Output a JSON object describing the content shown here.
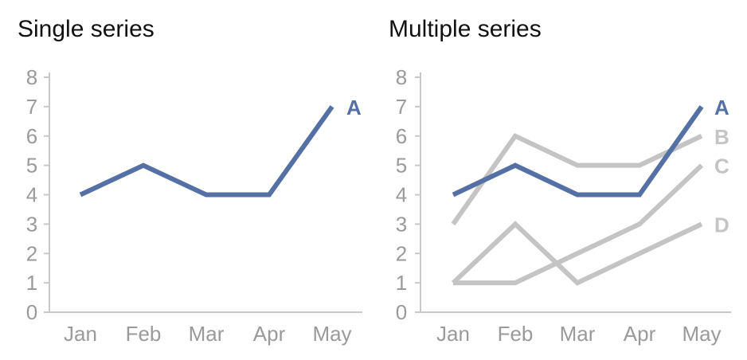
{
  "colors": {
    "highlight": "#5470a4",
    "muted": "#c4c4c4",
    "axis": "#c8c8c8",
    "tick_text": "#9a9a9a"
  },
  "chart_data": [
    {
      "type": "line",
      "title": "Single series",
      "categories": [
        "Jan",
        "Feb",
        "Mar",
        "Apr",
        "May"
      ],
      "ylim": [
        0,
        8
      ],
      "yticks": [
        0,
        1,
        2,
        3,
        4,
        5,
        6,
        7,
        8
      ],
      "grid": false,
      "series": [
        {
          "name": "A",
          "values": [
            4,
            5,
            4,
            4,
            7
          ],
          "color": "#5470a4"
        }
      ]
    },
    {
      "type": "line",
      "title": "Multiple series",
      "categories": [
        "Jan",
        "Feb",
        "Mar",
        "Apr",
        "May"
      ],
      "ylim": [
        0,
        8
      ],
      "yticks": [
        0,
        1,
        2,
        3,
        4,
        5,
        6,
        7,
        8
      ],
      "grid": false,
      "series": [
        {
          "name": "B",
          "values": [
            3,
            6,
            5,
            5,
            6
          ],
          "color": "#c4c4c4"
        },
        {
          "name": "C",
          "values": [
            1,
            1,
            2,
            3,
            5
          ],
          "color": "#c4c4c4"
        },
        {
          "name": "D",
          "values": [
            1,
            3,
            1,
            2,
            3
          ],
          "color": "#c4c4c4"
        },
        {
          "name": "A",
          "values": [
            4,
            5,
            4,
            4,
            7
          ],
          "color": "#5470a4"
        }
      ]
    }
  ]
}
